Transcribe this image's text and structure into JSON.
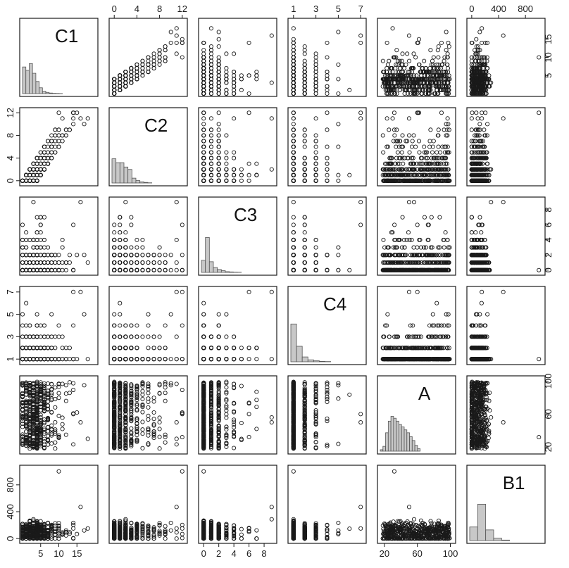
{
  "chart_data": {
    "type": "scatter",
    "kind": "scatterplot-matrix",
    "title": "",
    "variables": [
      {
        "name": "C1",
        "range": [
          0,
          20
        ],
        "ticks": [
          5,
          10,
          15
        ],
        "hist": [
          0.55,
          0.48,
          0.62,
          0.42,
          0.25,
          0.12,
          0.05,
          0.025,
          0.012,
          0.006,
          0.004,
          0.002
        ]
      },
      {
        "name": "C2",
        "range": [
          -0.4,
          12.4
        ],
        "ticks": [
          0,
          4,
          8,
          12
        ],
        "alt_ticks": [
          0,
          4,
          8,
          12
        ],
        "hist": [
          0.5,
          0.42,
          0.42,
          0.33,
          0.28,
          0.1,
          0.05,
          0.025,
          0.012,
          0.004
        ]
      },
      {
        "name": "C3",
        "range": [
          -0.3,
          9.3
        ],
        "ticks": [
          0,
          2,
          4,
          6,
          8
        ],
        "hist": [
          0.25,
          0.72,
          0.22,
          0.1,
          0.06,
          0.035,
          0.015,
          0.01,
          0.005,
          0.003
        ]
      },
      {
        "name": "C4",
        "range": [
          0.76,
          7.24
        ],
        "ticks": [
          1,
          3,
          5,
          7
        ],
        "alt_ticks": [
          1,
          3,
          5,
          7
        ],
        "hist": [
          0.78,
          0.32,
          0.1,
          0.04,
          0.02,
          0.01,
          0.005
        ]
      },
      {
        "name": "A",
        "range": [
          15,
          103
        ],
        "ticks": [
          20,
          60,
          100
        ],
        "alt_ticks": [
          20,
          60,
          100
        ],
        "hist": [
          0.03,
          0.1,
          0.38,
          0.62,
          0.72,
          0.68,
          0.62,
          0.55,
          0.5,
          0.44,
          0.38,
          0.3,
          0.22,
          0.12,
          0.05
        ]
      },
      {
        "name": "B1",
        "range": [
          -30,
          1050
        ],
        "ticks": [
          0,
          400,
          800
        ],
        "alt_ticks": [
          0,
          400,
          800
        ],
        "alt_ticks_left": [
          0,
          400,
          800
        ],
        "hist": [
          0.28,
          0.75,
          0.22,
          0.05,
          0.01
        ]
      }
    ],
    "right_ticks": {
      "C1": [
        5,
        10,
        15
      ],
      "C3": [
        0,
        2,
        4,
        6,
        8
      ],
      "A": [
        20,
        60,
        100
      ]
    },
    "left_ticks": {
      "C2": [
        0,
        4,
        8,
        12
      ],
      "C4": [
        1,
        3,
        5,
        7
      ],
      "B1": [
        0,
        400,
        800
      ]
    },
    "top_ticks": {
      "C2": [
        0,
        4,
        8,
        12
      ],
      "C4": [
        1,
        3,
        5,
        7
      ],
      "B1": [
        0,
        400,
        800
      ]
    },
    "bottom_ticks": {
      "C1": [
        5,
        10,
        15
      ],
      "C3": [
        0,
        2,
        4,
        6,
        8
      ],
      "A": [
        20,
        60,
        100
      ]
    },
    "outliers": {
      "C1": [
        18
      ],
      "B1": [
        1000
      ],
      "C2": [
        10,
        11,
        12
      ],
      "A": [
        30
      ]
    },
    "grid": false,
    "legend": "none"
  }
}
